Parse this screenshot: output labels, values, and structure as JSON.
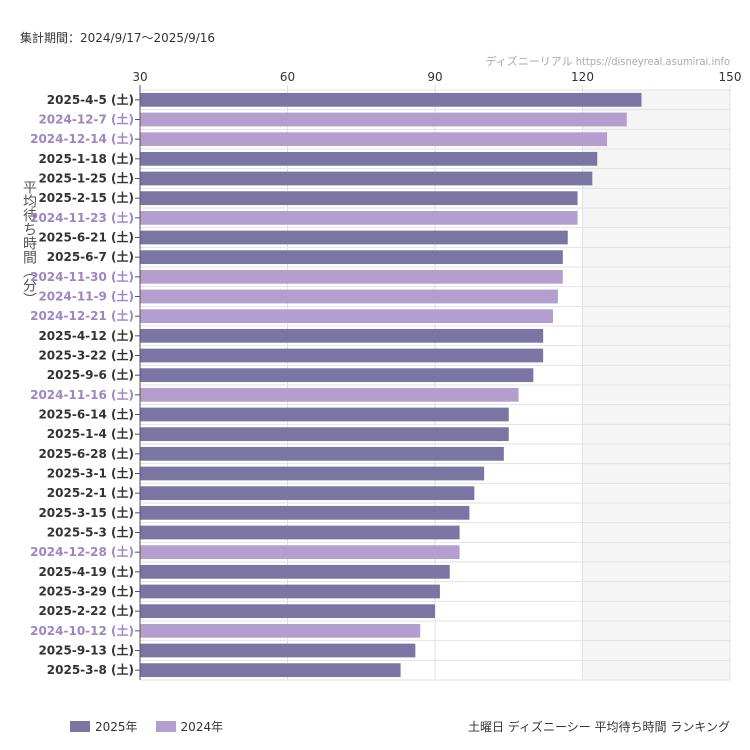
{
  "header": {
    "period": "集計期間：2024/9/17〜2025/9/16",
    "source": "ディズニーリアル  https://disneyreal.asumirai.info"
  },
  "caption": "土曜日 ディズニーシー 平均待ち時間 ランキング",
  "colors": {
    "2025年": "#7a75a3",
    "2024年": "#b39fcf",
    "shade": "#f5f5f5",
    "grid": "#e2e2e2"
  },
  "chart_data": {
    "type": "bar",
    "orientation": "horizontal",
    "ylabel": "平均待ち時間（分）",
    "xlim": [
      30,
      150
    ],
    "xticks": [
      30,
      60,
      90,
      120,
      150
    ],
    "shaded_range": [
      120,
      150
    ],
    "legend": [
      {
        "name": "2025年"
      },
      {
        "name": "2024年"
      }
    ],
    "legend_position": "bottom-left",
    "bars": [
      {
        "label": "2025-4-5 (土)",
        "value": 132,
        "year": "2025年"
      },
      {
        "label": "2024-12-7 (土)",
        "value": 129,
        "year": "2024年"
      },
      {
        "label": "2024-12-14 (土)",
        "value": 125,
        "year": "2024年"
      },
      {
        "label": "2025-1-18 (土)",
        "value": 123,
        "year": "2025年"
      },
      {
        "label": "2025-1-25 (土)",
        "value": 122,
        "year": "2025年"
      },
      {
        "label": "2025-2-15 (土)",
        "value": 119,
        "year": "2025年"
      },
      {
        "label": "2024-11-23 (土)",
        "value": 119,
        "year": "2024年"
      },
      {
        "label": "2025-6-21 (土)",
        "value": 117,
        "year": "2025年"
      },
      {
        "label": "2025-6-7 (土)",
        "value": 116,
        "year": "2025年"
      },
      {
        "label": "2024-11-30 (土)",
        "value": 116,
        "year": "2024年"
      },
      {
        "label": "2024-11-9 (土)",
        "value": 115,
        "year": "2024年"
      },
      {
        "label": "2024-12-21 (土)",
        "value": 114,
        "year": "2024年"
      },
      {
        "label": "2025-4-12 (土)",
        "value": 112,
        "year": "2025年"
      },
      {
        "label": "2025-3-22 (土)",
        "value": 112,
        "year": "2025年"
      },
      {
        "label": "2025-9-6 (土)",
        "value": 110,
        "year": "2025年"
      },
      {
        "label": "2024-11-16 (土)",
        "value": 107,
        "year": "2024年"
      },
      {
        "label": "2025-6-14 (土)",
        "value": 105,
        "year": "2025年"
      },
      {
        "label": "2025-1-4 (土)",
        "value": 105,
        "year": "2025年"
      },
      {
        "label": "2025-6-28 (土)",
        "value": 104,
        "year": "2025年"
      },
      {
        "label": "2025-3-1 (土)",
        "value": 100,
        "year": "2025年"
      },
      {
        "label": "2025-2-1 (土)",
        "value": 98,
        "year": "2025年"
      },
      {
        "label": "2025-3-15 (土)",
        "value": 97,
        "year": "2025年"
      },
      {
        "label": "2025-5-3 (土)",
        "value": 95,
        "year": "2025年"
      },
      {
        "label": "2024-12-28 (土)",
        "value": 95,
        "year": "2024年"
      },
      {
        "label": "2025-4-19 (土)",
        "value": 93,
        "year": "2025年"
      },
      {
        "label": "2025-3-29 (土)",
        "value": 91,
        "year": "2025年"
      },
      {
        "label": "2025-2-22 (土)",
        "value": 90,
        "year": "2025年"
      },
      {
        "label": "2024-10-12 (土)",
        "value": 87,
        "year": "2024年"
      },
      {
        "label": "2025-9-13 (土)",
        "value": 86,
        "year": "2025年"
      },
      {
        "label": "2025-3-8 (土)",
        "value": 83,
        "year": "2025年"
      }
    ]
  }
}
